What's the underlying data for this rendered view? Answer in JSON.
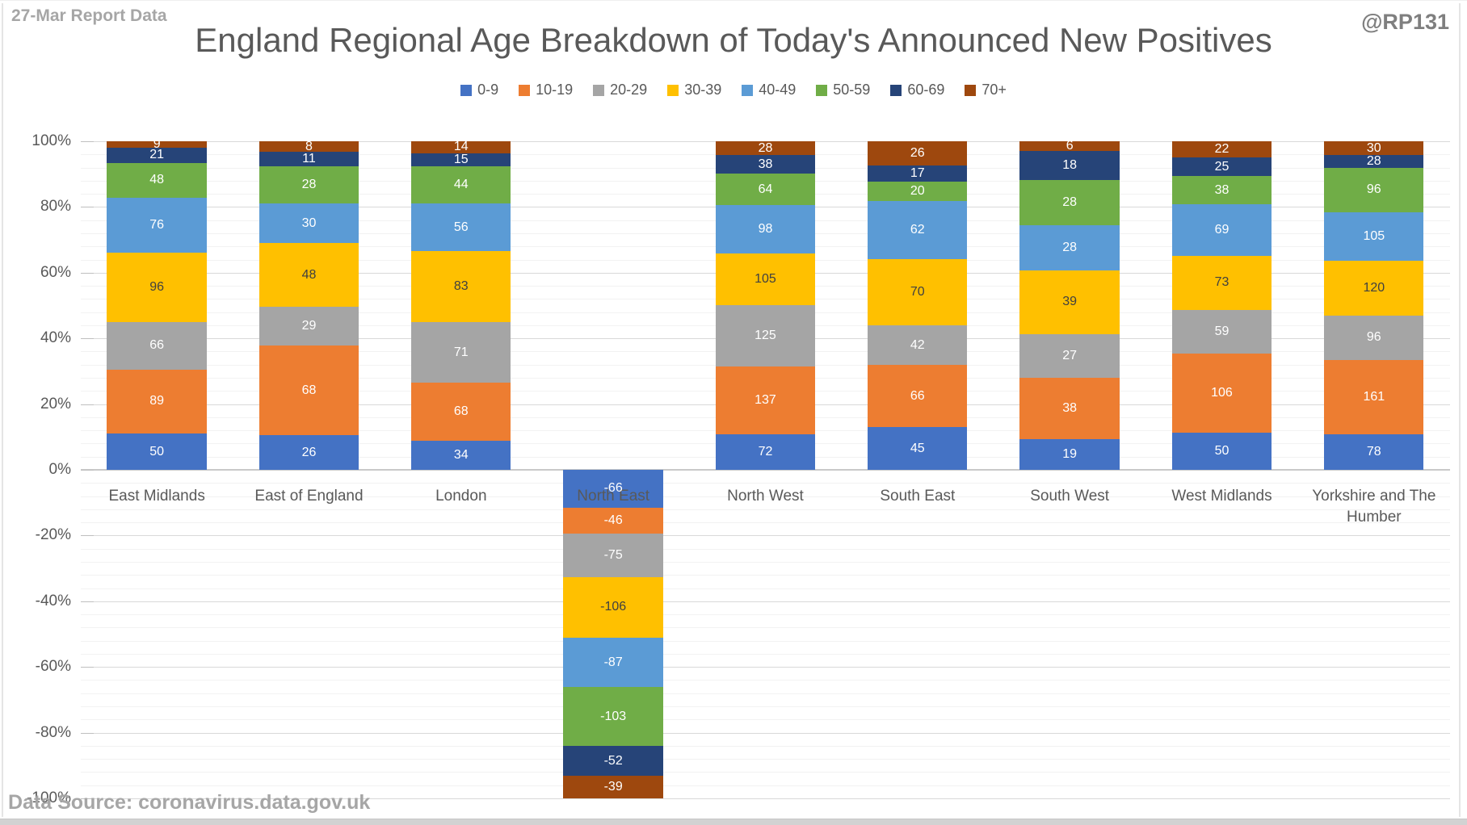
{
  "header": {
    "report_label": "27-Mar Report Data",
    "watermark": "@RP131"
  },
  "footer": {
    "source": "Data Source: coronavirus.data.gov.uk"
  },
  "chart_data": {
    "type": "bar",
    "stacked": "percent",
    "title": "England Regional Age Breakdown of Today's Announced New Positives",
    "legend_position": "top",
    "grid": "major-and-minor",
    "categories": [
      "East Midlands",
      "East of England",
      "London",
      "North East",
      "North West",
      "South East",
      "South West",
      "West Midlands",
      "Yorkshire and The Humber"
    ],
    "y_axis": {
      "min": -100,
      "max": 100,
      "major_step": 20,
      "minor_step": 4,
      "tick_suffix": "%"
    },
    "series": [
      {
        "name": "0-9",
        "color": "#4472C4",
        "label_color": "#FFFFFF",
        "values": [
          50,
          26,
          34,
          -66,
          72,
          45,
          19,
          50,
          78
        ]
      },
      {
        "name": "10-19",
        "color": "#ED7D31",
        "label_color": "#FFFFFF",
        "values": [
          89,
          68,
          68,
          -46,
          137,
          66,
          38,
          106,
          161
        ]
      },
      {
        "name": "20-29",
        "color": "#A5A5A5",
        "label_color": "#FFFFFF",
        "values": [
          66,
          29,
          71,
          -75,
          125,
          42,
          27,
          59,
          96
        ]
      },
      {
        "name": "30-39",
        "color": "#FFC000",
        "label_color": "#404040",
        "values": [
          96,
          48,
          83,
          -106,
          105,
          70,
          39,
          73,
          120
        ]
      },
      {
        "name": "40-49",
        "color": "#5B9BD5",
        "label_color": "#FFFFFF",
        "values": [
          76,
          30,
          56,
          -87,
          98,
          62,
          28,
          69,
          105
        ]
      },
      {
        "name": "50-59",
        "color": "#70AD47",
        "label_color": "#FFFFFF",
        "values": [
          48,
          28,
          44,
          -103,
          64,
          20,
          28,
          38,
          96
        ]
      },
      {
        "name": "60-69",
        "color": "#264478",
        "label_color": "#FFFFFF",
        "values": [
          21,
          11,
          15,
          -52,
          38,
          17,
          18,
          25,
          28
        ]
      },
      {
        "name": "70+",
        "color": "#9E480E",
        "label_color": "#FFFFFF",
        "values": [
          9,
          8,
          14,
          -39,
          28,
          26,
          6,
          22,
          30
        ]
      }
    ]
  }
}
